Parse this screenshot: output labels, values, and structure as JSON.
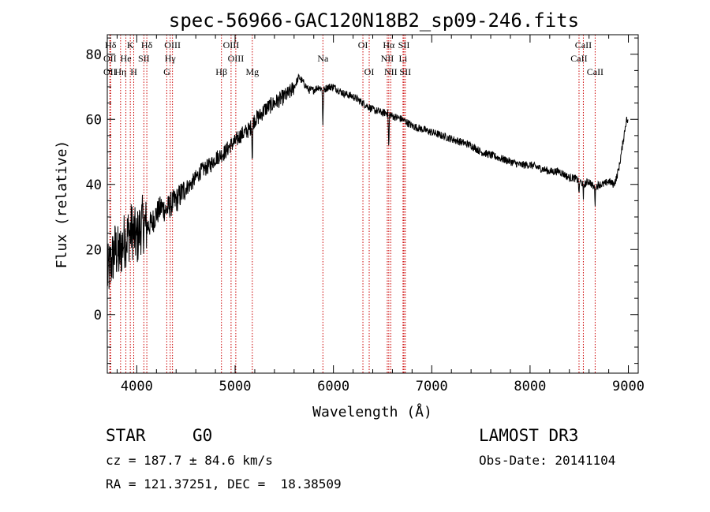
{
  "chart_data": {
    "type": "line",
    "title": "spec-56966-GAC120N18B2_sp09-246.fits",
    "xlabel": "Wavelength (Å)",
    "ylabel": "Flux (relative)",
    "xlim": [
      3700,
      9100
    ],
    "ylim": [
      -18,
      86
    ],
    "xticks": [
      4000,
      5000,
      6000,
      7000,
      8000,
      9000
    ],
    "xtick_labels": [
      "4000",
      "5000",
      "6000",
      "7000",
      "8000",
      "9000"
    ],
    "yticks": [
      0,
      20,
      40,
      60,
      80
    ],
    "ytick_labels": [
      "0",
      "20",
      "40",
      "60",
      "80"
    ],
    "x_minor_step": 200,
    "y_minor_step": 5,
    "series": [
      {
        "name": "spectrum",
        "x": [
          3700,
          3740,
          3780,
          3820,
          3860,
          3900,
          3950,
          4000,
          4050,
          4100,
          4150,
          4200,
          4250,
          4300,
          4350,
          4400,
          4450,
          4500,
          4550,
          4600,
          4650,
          4700,
          4750,
          4800,
          4850,
          4900,
          4950,
          5000,
          5050,
          5100,
          5150,
          5200,
          5250,
          5300,
          5350,
          5400,
          5450,
          5500,
          5550,
          5600,
          5650,
          5700,
          5750,
          5800,
          5850,
          5900,
          5950,
          6000,
          6100,
          6200,
          6300,
          6400,
          6500,
          6550,
          6600,
          6700,
          6800,
          6900,
          7000,
          7100,
          7200,
          7300,
          7400,
          7500,
          7600,
          7700,
          7800,
          7900,
          8000,
          8100,
          8200,
          8300,
          8400,
          8450,
          8500,
          8550,
          8600,
          8650,
          8700,
          8750,
          8800,
          8850,
          8880,
          8910,
          8940,
          8960,
          8980,
          9000
        ],
        "y": [
          12,
          16,
          20,
          18,
          22,
          24,
          26,
          23,
          28,
          27,
          28,
          31,
          33,
          32,
          34,
          35,
          37,
          39,
          40,
          42,
          44,
          45,
          46,
          48,
          49,
          50,
          52,
          53,
          55,
          56,
          57,
          60,
          61,
          63,
          64,
          65,
          66,
          67,
          68,
          70,
          73,
          71,
          69,
          69,
          70,
          69,
          70,
          70,
          68,
          67,
          65,
          63,
          62,
          62,
          61,
          60,
          58,
          57,
          56,
          55,
          54,
          53,
          52,
          50,
          49,
          48,
          47,
          46,
          46,
          45,
          44,
          44,
          42,
          42,
          41,
          40,
          41,
          39,
          40,
          40,
          41,
          40,
          42,
          46,
          52,
          56,
          60,
          59
        ]
      }
    ],
    "line_marks": [
      {
        "label": "Hδ",
        "x": 3734,
        "row": 0
      },
      {
        "label": "OII",
        "x": 3727,
        "row": 1
      },
      {
        "label": "OII",
        "x": 3727,
        "row": 2
      },
      {
        "label": "He",
        "x": 3889,
        "row": 1
      },
      {
        "label": "Hη",
        "x": 3835,
        "row": 2
      },
      {
        "label": "K",
        "x": 3934,
        "row": 0
      },
      {
        "label": "SII",
        "x": 4072,
        "row": 1
      },
      {
        "label": "H",
        "x": 3969,
        "row": 2
      },
      {
        "label": "Hδ",
        "x": 4102,
        "row": 0
      },
      {
        "label": "OIII",
        "x": 4363,
        "row": 0
      },
      {
        "label": "Hγ",
        "x": 4340,
        "row": 1
      },
      {
        "label": "G",
        "x": 4305,
        "row": 2
      },
      {
        "label": "Hβ",
        "x": 4861,
        "row": 2
      },
      {
        "label": "OIII",
        "x": 4959,
        "row": 0
      },
      {
        "label": "OIII",
        "x": 5007,
        "row": 1
      },
      {
        "label": "Mg",
        "x": 5175,
        "row": 2
      },
      {
        "label": "Na",
        "x": 5893,
        "row": 1
      },
      {
        "label": "OI",
        "x": 6300,
        "row": 0
      },
      {
        "label": "OI",
        "x": 6364,
        "row": 2
      },
      {
        "label": "Hα",
        "x": 6563,
        "row": 0
      },
      {
        "label": "SII",
        "x": 6717,
        "row": 0
      },
      {
        "label": "NII",
        "x": 6548,
        "row": 1
      },
      {
        "label": "Li",
        "x": 6708,
        "row": 1
      },
      {
        "label": "NII",
        "x": 6583,
        "row": 2
      },
      {
        "label": "SII",
        "x": 6731,
        "row": 2
      },
      {
        "label": "CaII",
        "x": 8542,
        "row": 0
      },
      {
        "label": "CaII",
        "x": 8498,
        "row": 1
      },
      {
        "label": "CaII",
        "x": 8662,
        "row": 2
      }
    ],
    "line_color": "#cc0000"
  },
  "info": {
    "class": "STAR",
    "subclass": "G0",
    "cz": "cz = 187.7 ± 84.6 km/s",
    "coords": "RA = 121.37251, DEC =  18.38509",
    "survey": "LAMOST DR3",
    "obs_date": "Obs-Date: 20141104"
  }
}
